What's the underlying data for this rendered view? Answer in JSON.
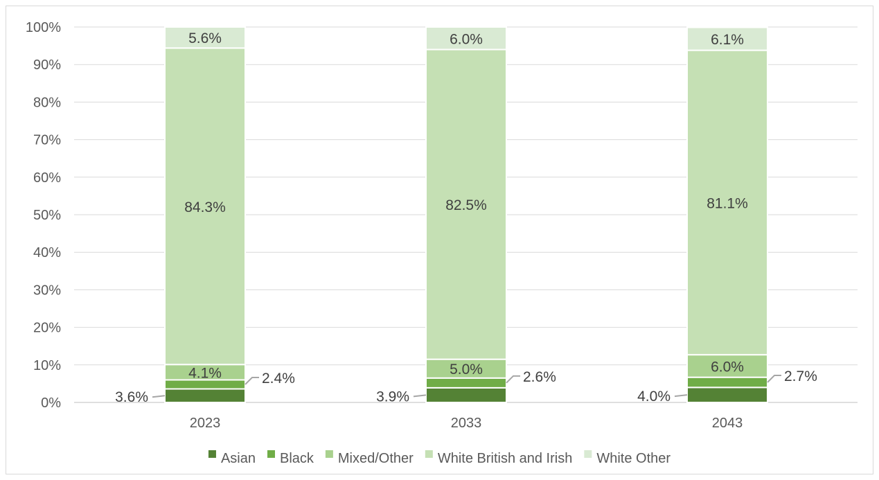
{
  "chart_data": {
    "type": "bar",
    "stacked": true,
    "percent": true,
    "categories": [
      "2023",
      "2033",
      "2043"
    ],
    "series": [
      {
        "name": "Asian",
        "color": "#548235",
        "values": [
          3.6,
          3.9,
          4.0
        ],
        "labels": [
          "3.6%",
          "3.9%",
          "4.0%"
        ]
      },
      {
        "name": "Black",
        "color": "#70ad47",
        "values": [
          2.4,
          2.6,
          2.7
        ],
        "labels": [
          "2.4%",
          "2.6%",
          "2.7%"
        ]
      },
      {
        "name": "Mixed/Other",
        "color": "#a9d18e",
        "values": [
          4.1,
          5.0,
          6.0
        ],
        "labels": [
          "4.1%",
          "5.0%",
          "6.0%"
        ]
      },
      {
        "name": "White British and Irish",
        "color": "#c5e0b4",
        "values": [
          84.3,
          82.5,
          81.1
        ],
        "labels": [
          "84.3%",
          "82.5%",
          "81.1%"
        ]
      },
      {
        "name": "White Other",
        "color": "#d9ead3",
        "values": [
          5.6,
          6.0,
          6.1
        ],
        "labels": [
          "5.6%",
          "6.0%",
          "6.1%"
        ]
      }
    ],
    "y_ticks": [
      "0%",
      "10%",
      "20%",
      "30%",
      "40%",
      "50%",
      "60%",
      "70%",
      "80%",
      "90%",
      "100%"
    ],
    "ylim": [
      0,
      100
    ],
    "grid": true,
    "legend": "bottom",
    "title": "",
    "xlabel": "",
    "ylabel": ""
  }
}
